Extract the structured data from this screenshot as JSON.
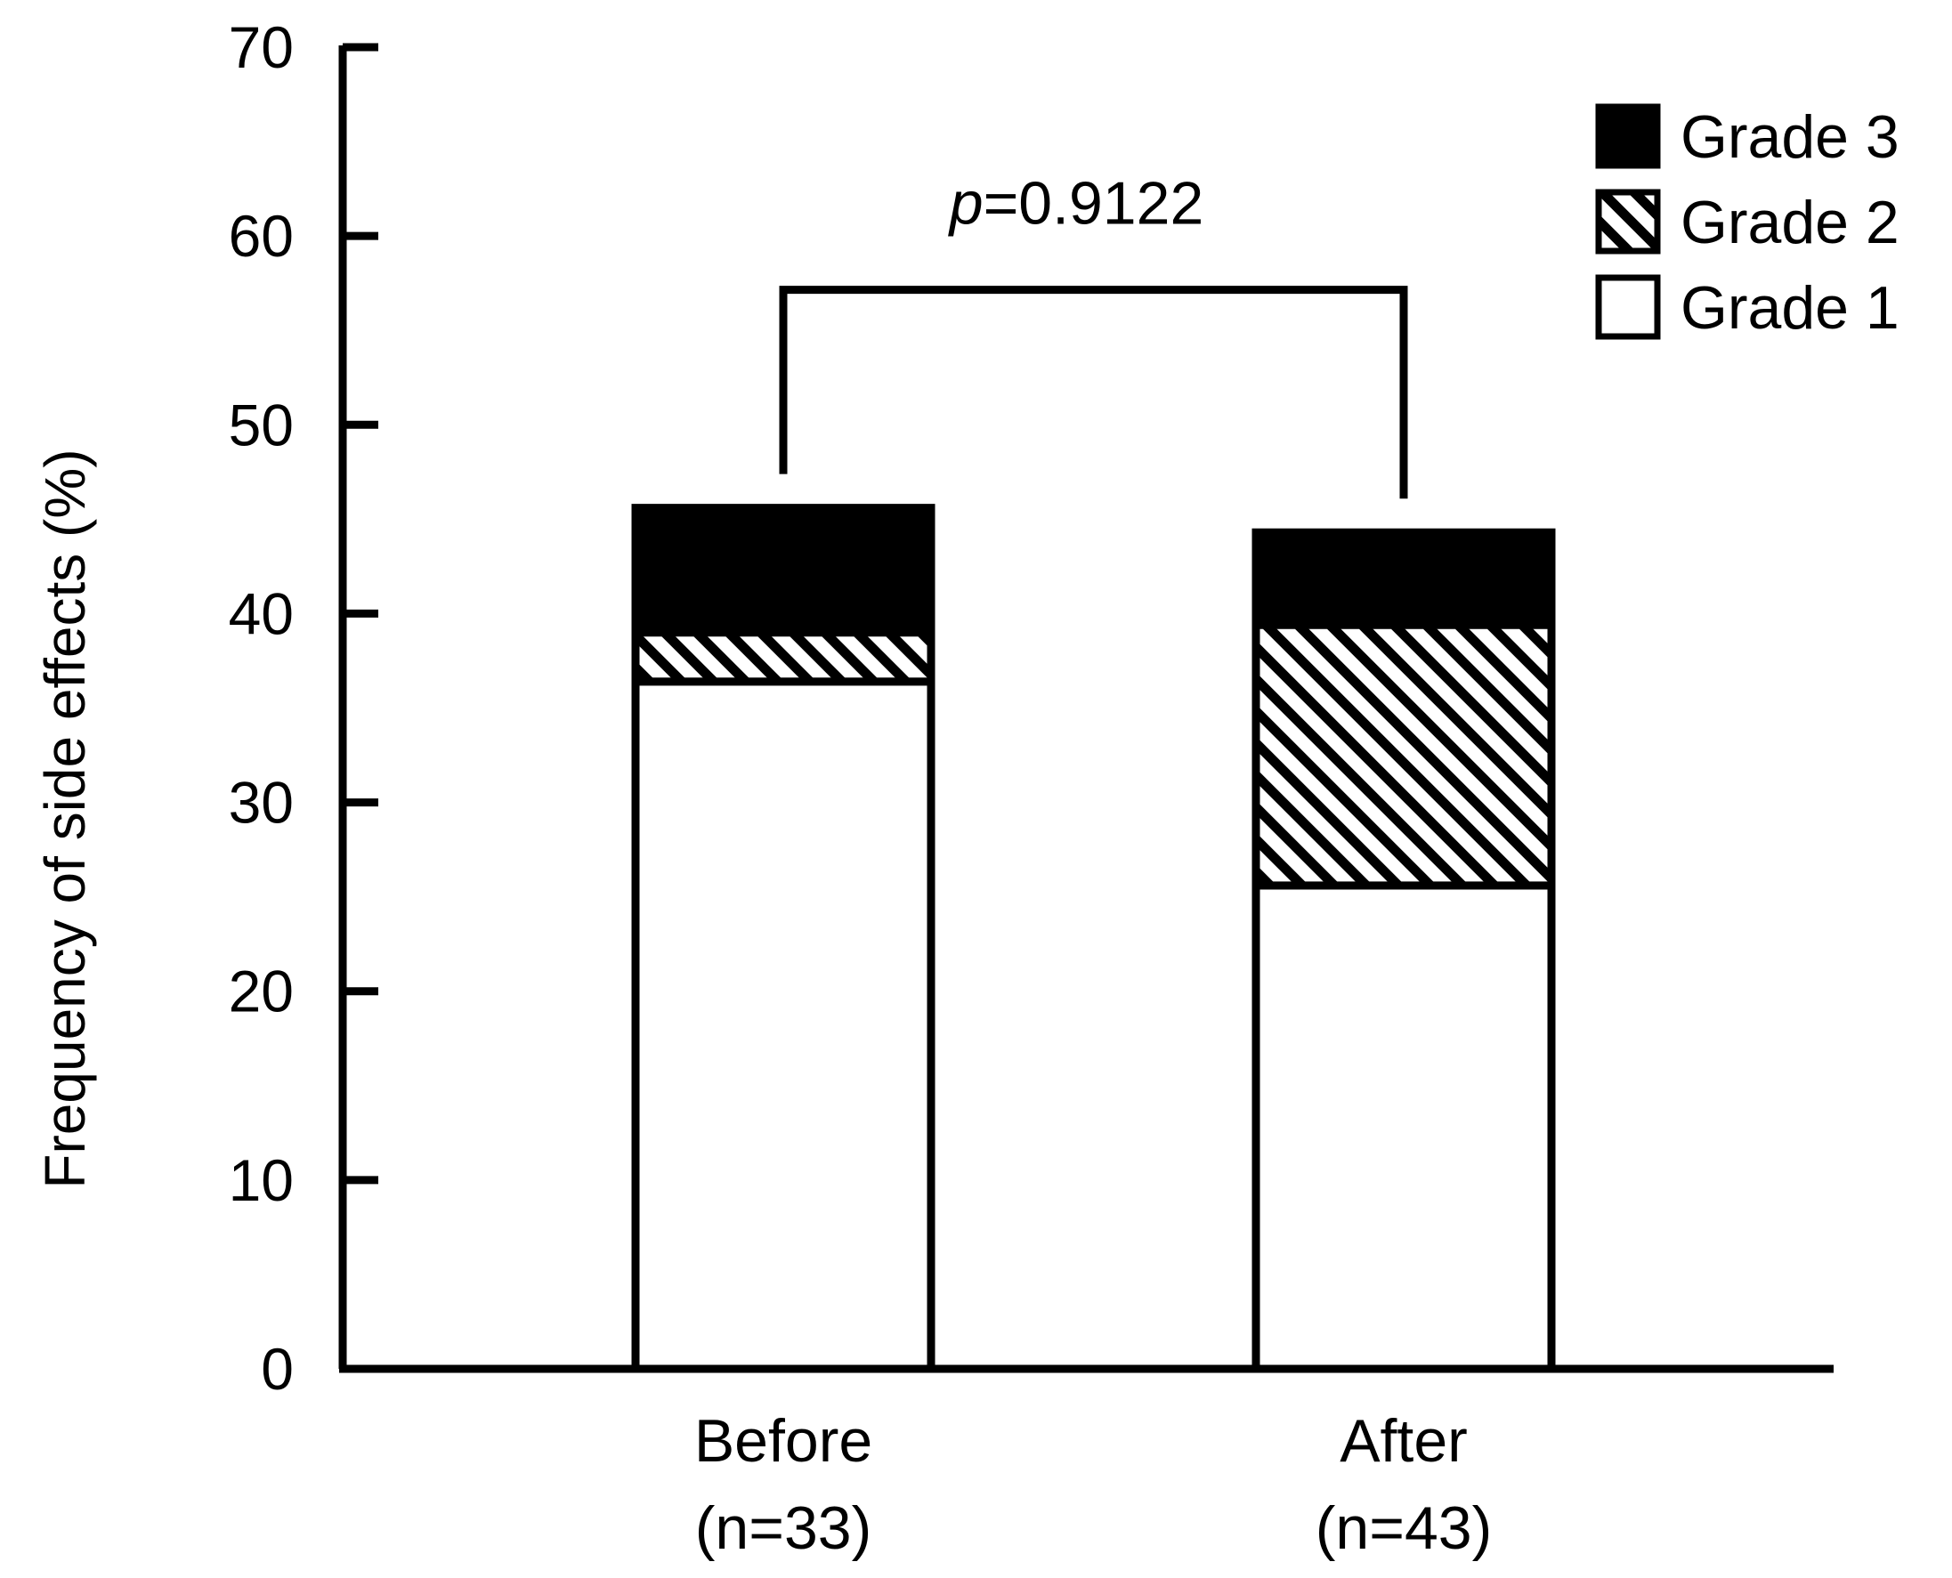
{
  "chart_data": {
    "type": "bar",
    "stacked": true,
    "title": "",
    "xlabel": "",
    "ylabel": "Frequency of side effects (%)",
    "ylim": [
      0,
      70
    ],
    "yticks": [
      0,
      10,
      20,
      30,
      40,
      50,
      60,
      70
    ],
    "grid": false,
    "legend_position": "top-right",
    "categories": [
      {
        "label": "Before",
        "n_label": "(n=33)"
      },
      {
        "label": "After",
        "n_label": "(n=43)"
      }
    ],
    "series": [
      {
        "name": "Grade 1",
        "pattern": "white",
        "values": [
          36.4,
          25.6
        ]
      },
      {
        "name": "Grade 2",
        "pattern": "diagonal-hatch",
        "values": [
          2.6,
          13.8
        ]
      },
      {
        "name": "Grade 3",
        "pattern": "black",
        "values": [
          6.6,
          4.9
        ]
      }
    ],
    "legend_order": [
      "Grade 3",
      "Grade 2",
      "Grade 1"
    ],
    "annotation": {
      "p_symbol": "p",
      "p_text": "=0.9122",
      "between": [
        "Before",
        "After"
      ]
    },
    "colors": {
      "ink": "#000000",
      "background": "#ffffff"
    }
  }
}
